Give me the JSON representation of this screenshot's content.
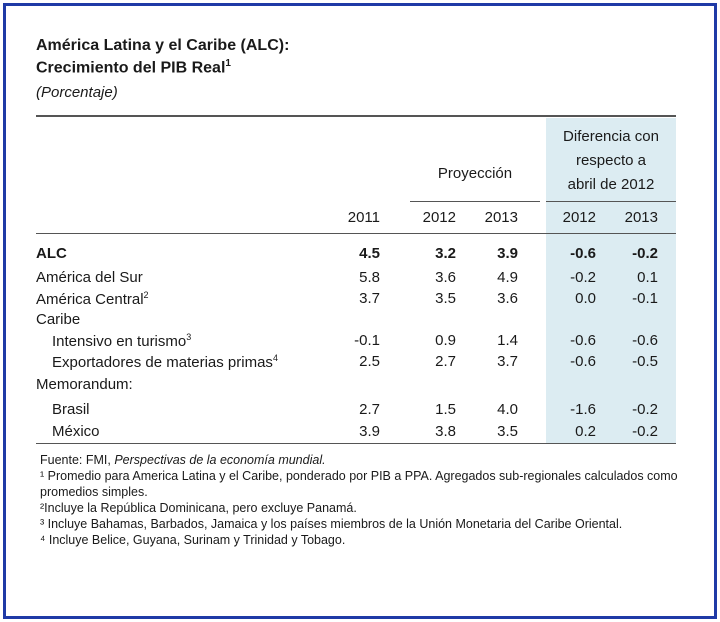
{
  "title_line1": "América Latina y el Caribe (ALC):",
  "title_line2": "Crecimiento del PIB Real",
  "title_sup": "1",
  "subtitle_open": "(",
  "subtitle": "Porcentaje",
  "subtitle_close": ")",
  "header": {
    "diff_line1": "Diferencia con",
    "diff_line2": "respecto a",
    "diff_line3": "abril de 2012",
    "proyeccion": "Proyección",
    "years": [
      "2011",
      "2012",
      "2013",
      "2012",
      "2013"
    ]
  },
  "rows": [
    {
      "label": "ALC",
      "sup": "",
      "values": [
        "4.5",
        "3.2",
        "3.9",
        "-0.6",
        "-0.2"
      ]
    },
    {
      "label": "América del Sur",
      "sup": "",
      "values": [
        "5.8",
        "3.6",
        "4.9",
        "-0.2",
        "0.1"
      ]
    },
    {
      "label": "América Central",
      "sup": "2",
      "values": [
        "3.7",
        "3.5",
        "3.6",
        "0.0",
        "-0.1"
      ]
    },
    {
      "label": "Caribe",
      "sup": "",
      "values": []
    },
    {
      "label": "Intensivo en turismo",
      "sup": "3",
      "values": [
        "-0.1",
        "0.9",
        "1.4",
        "-0.6",
        "-0.6"
      ]
    },
    {
      "label": "Exportadores de materias primas",
      "sup": "4",
      "values": [
        "2.5",
        "2.7",
        "3.7",
        "-0.6",
        "-0.5"
      ]
    },
    {
      "label": "Memorandum:",
      "sup": "",
      "values": []
    },
    {
      "label": "Brasil",
      "sup": "",
      "values": [
        "2.7",
        "1.5",
        "4.0",
        "-1.6",
        "-0.2"
      ]
    },
    {
      "label": "México",
      "sup": "",
      "values": [
        "3.9",
        "3.8",
        "3.5",
        "0.2",
        "-0.2"
      ]
    }
  ],
  "notes": {
    "source_prefix": "Fuente: FMI, ",
    "source_italic": "Perspectivas de la economía mundial.",
    "n1": "¹ Promedio para America Latina y el Caribe, ponderado por PIB a PPA. Agregados sub-regionales calculados como promedios simples.",
    "n2": "²Incluye la República Dominicana, pero excluye Panamá.",
    "n3": "³ Incluye Bahamas, Barbados, Jamaica y los países miembros de la Unión Monetaria del Caribe Oriental.",
    "n4": "⁴ Incluye Belice, Guyana, Surinam y Trinidad y Tobago."
  },
  "colors": {
    "frame": "#1f3aa6",
    "shade": "#dcecf2"
  }
}
